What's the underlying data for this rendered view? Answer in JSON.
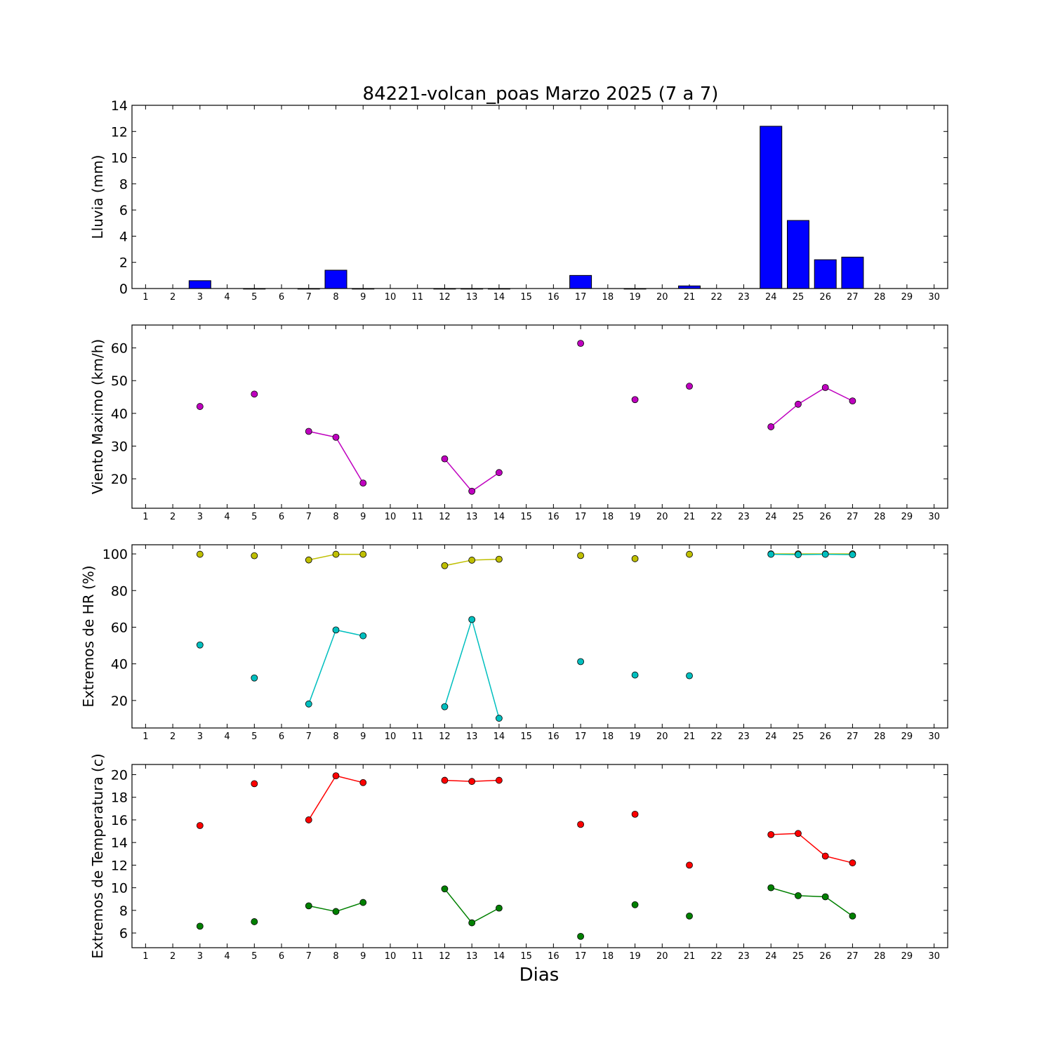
{
  "title": "84221-volcan_poas Marzo 2025  (7 a 7)",
  "xlabel": "Dias",
  "colors": {
    "rain": "#0000ff",
    "wind": "#bf00bf",
    "hr_max": "#bfbf00",
    "hr_min": "#00bfbf",
    "temp_max": "#ff0000",
    "temp_min": "#008000"
  },
  "chart_data": [
    {
      "type": "bar",
      "ylabel": "Lluvia (mm)",
      "xlim": [
        0.5,
        30.5
      ],
      "ylim": [
        0,
        14
      ],
      "yticks": [
        0,
        2,
        4,
        6,
        8,
        10,
        12,
        14
      ],
      "x": [
        3,
        5,
        7,
        8,
        9,
        12,
        13,
        14,
        17,
        19,
        21,
        24,
        25,
        26,
        27
      ],
      "values": [
        0.6,
        0,
        0,
        1.4,
        0,
        0,
        0,
        0,
        1.0,
        0,
        0.2,
        12.4,
        5.2,
        2.2,
        2.4
      ],
      "series": [
        {
          "values": [
            0.6,
            0,
            0,
            1.4,
            0,
            0,
            0,
            0,
            1.0,
            0,
            0.2,
            12.4,
            5.2,
            2.2,
            2.4
          ]
        }
      ]
    },
    {
      "type": "line",
      "ylabel": "Viento Maximo (km/h)",
      "xlim": [
        0.5,
        30.5
      ],
      "ylim": [
        11,
        67
      ],
      "yticks": [
        20,
        30,
        40,
        50,
        60
      ],
      "series": [
        {
          "x": [
            3,
            5,
            7,
            8,
            9,
            12,
            13,
            14,
            17,
            19,
            21,
            24,
            25,
            26,
            27
          ],
          "values": [
            42.1,
            45.9,
            34.5,
            32.7,
            18.7,
            26.1,
            16.2,
            21.9,
            61.4,
            44.2,
            48.3,
            35.9,
            42.8,
            47.9,
            43.8
          ]
        }
      ]
    },
    {
      "type": "line",
      "ylabel": "Extremos de HR (%)",
      "xlim": [
        0.5,
        30.5
      ],
      "ylim": [
        5,
        105
      ],
      "yticks": [
        20,
        40,
        60,
        80,
        100
      ],
      "series": [
        {
          "x": [
            3,
            5,
            7,
            8,
            9,
            12,
            13,
            14,
            17,
            19,
            21,
            24,
            25,
            26,
            27
          ],
          "values": [
            99.8,
            99,
            96.7,
            99.8,
            99.8,
            93.6,
            96.6,
            97.1,
            99.1,
            97.4,
            99.8,
            100,
            100,
            100,
            100
          ]
        },
        {
          "x": [
            3,
            5,
            7,
            8,
            9,
            12,
            13,
            14,
            17,
            19,
            21,
            24,
            25,
            26,
            27
          ],
          "values": [
            50.3,
            32.3,
            18.1,
            58.5,
            55.3,
            16.6,
            64.2,
            10.3,
            41.2,
            33.9,
            33.5,
            99.8,
            99.6,
            99.8,
            99.6
          ]
        }
      ]
    },
    {
      "type": "line",
      "ylabel": "Extremos de Temperatura (c)",
      "xlim": [
        0.5,
        30.5
      ],
      "ylim": [
        4.7,
        20.9
      ],
      "yticks": [
        6,
        8,
        10,
        12,
        14,
        16,
        18,
        20
      ],
      "series": [
        {
          "x": [
            3,
            5,
            7,
            8,
            9,
            12,
            13,
            14,
            17,
            19,
            21,
            24,
            25,
            26,
            27
          ],
          "values": [
            15.5,
            19.2,
            16,
            19.9,
            19.3,
            19.5,
            19.4,
            19.5,
            15.6,
            16.5,
            12,
            14.7,
            14.8,
            12.8,
            12.2
          ]
        },
        {
          "x": [
            3,
            5,
            7,
            8,
            9,
            12,
            13,
            14,
            17,
            19,
            21,
            24,
            25,
            26,
            27
          ],
          "values": [
            6.6,
            7,
            8.4,
            7.9,
            8.7,
            9.9,
            6.9,
            8.2,
            5.7,
            8.5,
            7.5,
            10,
            9.3,
            9.2,
            7.5
          ]
        }
      ]
    }
  ]
}
